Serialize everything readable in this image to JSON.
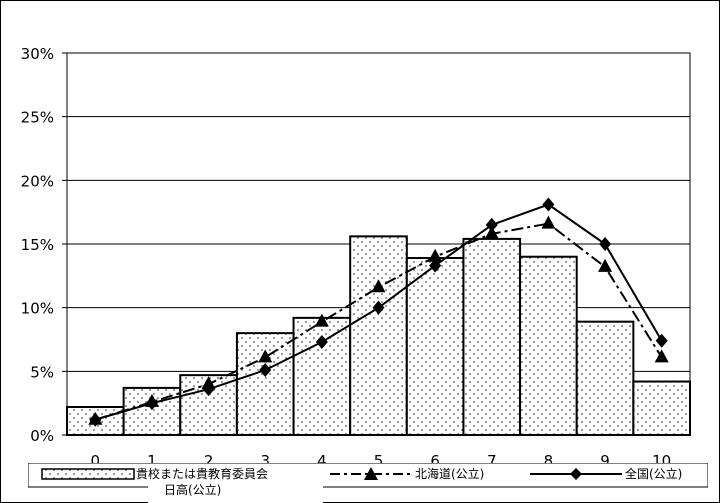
{
  "chart_data": {
    "type": "bar",
    "categories": [
      "0",
      "1",
      "2",
      "3",
      "4",
      "5",
      "6",
      "7",
      "8",
      "9",
      "10"
    ],
    "ylim": [
      0,
      30
    ],
    "yticks": [
      "0%",
      "5%",
      "10%",
      "15%",
      "20%",
      "25%",
      "30%"
    ],
    "grid": true,
    "legend_position": "bottom",
    "series": [
      {
        "name": "貴校または貴教育委員会",
        "name_line2": "日高(公立)",
        "type": "bar",
        "values": [
          2.2,
          3.7,
          4.7,
          8.0,
          9.2,
          15.6,
          13.9,
          15.4,
          14.0,
          8.9,
          4.2
        ]
      },
      {
        "name": "北海道(公立)",
        "type": "line",
        "marker": "triangle",
        "dash": "dashdot",
        "values": [
          1.2,
          2.6,
          4.0,
          6.1,
          8.9,
          11.6,
          14.0,
          15.8,
          16.6,
          13.2,
          6.1
        ]
      },
      {
        "name": "全国(公立)",
        "type": "line",
        "marker": "diamond",
        "dash": "solid",
        "values": [
          1.2,
          2.5,
          3.6,
          5.1,
          7.3,
          10.0,
          13.3,
          16.5,
          18.1,
          15.0,
          7.4
        ]
      }
    ]
  }
}
